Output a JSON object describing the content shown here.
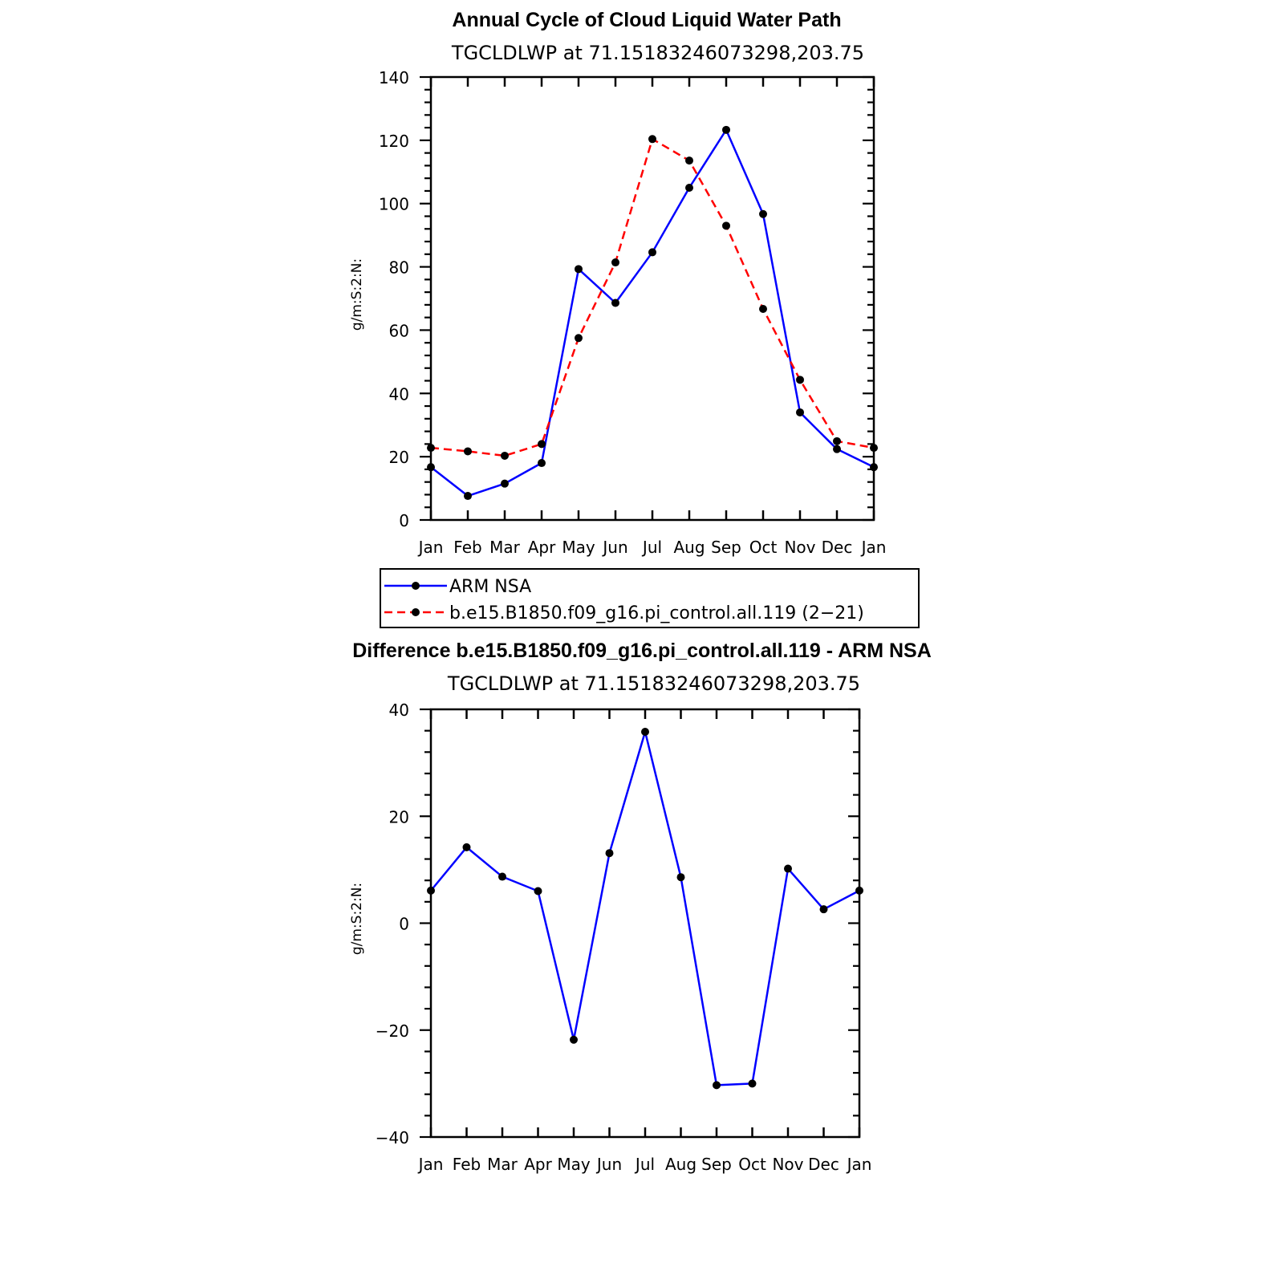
{
  "chart_data": [
    {
      "type": "line",
      "title": "Annual Cycle of Cloud Liquid Water Path",
      "subtitle": "TGCLDLWP  at 71.15183246073298,203.75",
      "ylabel": "g/m:S:2:N:",
      "xlabel": "",
      "categories": [
        "Jan",
        "Feb",
        "Mar",
        "Apr",
        "May",
        "Jun",
        "Jul",
        "Aug",
        "Sep",
        "Oct",
        "Nov",
        "Dec",
        "Jan"
      ],
      "ylim": [
        0,
        140
      ],
      "yticks": [
        0,
        20,
        40,
        60,
        80,
        100,
        120,
        140
      ],
      "series": [
        {
          "name": "ARM NSA",
          "color": "#0000ff",
          "dash": "solid",
          "values": [
            16.7,
            7.6,
            11.5,
            18.0,
            79.3,
            68.6,
            84.6,
            105.0,
            123.3,
            96.7,
            34.0,
            22.4,
            16.7
          ]
        },
        {
          "name": "b.e15.B1850.f09_g16.pi_control.all.119 (2−21)",
          "color": "#ff0000",
          "dash": "dashed",
          "values": [
            22.8,
            21.7,
            20.3,
            24.0,
            57.5,
            81.4,
            120.4,
            113.6,
            93.0,
            66.7,
            44.3,
            24.9,
            22.8
          ]
        }
      ],
      "legend": "below"
    },
    {
      "type": "line",
      "title": "Difference b.e15.B1850.f09_g16.pi_control.all.119 - ARM NSA",
      "subtitle": "TGCLDLWP  at 71.15183246073298,203.75",
      "ylabel": "g/m:S:2:N:",
      "xlabel": "",
      "categories": [
        "Jan",
        "Feb",
        "Mar",
        "Apr",
        "May",
        "Jun",
        "Jul",
        "Aug",
        "Sep",
        "Oct",
        "Nov",
        "Dec",
        "Jan"
      ],
      "ylim": [
        -40,
        40
      ],
      "yticks": [
        -40,
        -20,
        0,
        20,
        40
      ],
      "series": [
        {
          "name": "Difference",
          "color": "#0000ff",
          "dash": "solid",
          "values": [
            6.1,
            14.2,
            8.7,
            6.0,
            -21.8,
            13.1,
            35.8,
            8.6,
            -30.3,
            -30.0,
            10.2,
            2.6,
            6.1
          ]
        }
      ]
    }
  ]
}
